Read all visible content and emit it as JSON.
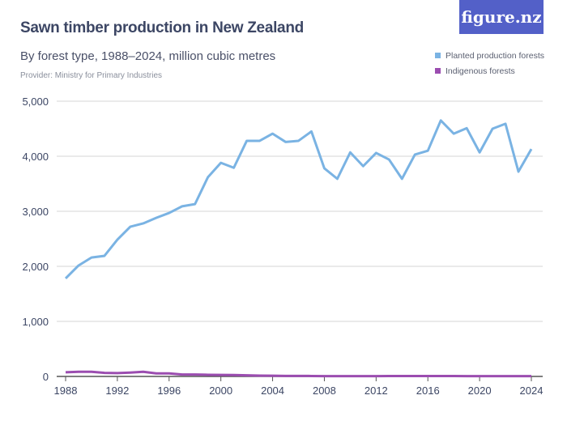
{
  "title": "Sawn timber production in New Zealand",
  "subtitle": "By forest type, 1988–2024, million cubic metres",
  "provider": "Provider: Ministry for Primary Industries",
  "logo": "figure.nz",
  "chart_data": {
    "type": "line",
    "title": "Sawn timber production in New Zealand",
    "x": [
      1988,
      1989,
      1990,
      1991,
      1992,
      1993,
      1994,
      1995,
      1996,
      1997,
      1998,
      1999,
      2000,
      2001,
      2002,
      2003,
      2004,
      2005,
      2006,
      2007,
      2008,
      2009,
      2010,
      2011,
      2012,
      2013,
      2014,
      2015,
      2016,
      2017,
      2018,
      2019,
      2020,
      2021,
      2022,
      2023,
      2024
    ],
    "series": [
      {
        "name": "Planted production forests",
        "color": "#7ab3e3",
        "values": [
          1780,
          2015,
          2160,
          2190,
          2485,
          2720,
          2780,
          2880,
          2970,
          3090,
          3130,
          3620,
          3880,
          3790,
          4280,
          4280,
          4410,
          4260,
          4280,
          4450,
          3780,
          3590,
          4070,
          3820,
          4060,
          3940,
          3590,
          4030,
          4100,
          4650,
          4410,
          4510,
          4070,
          4500,
          4590,
          3720,
          4130
        ]
      },
      {
        "name": "Indigenous forests",
        "color": "#9b4db0",
        "values": [
          75,
          85,
          85,
          65,
          60,
          70,
          85,
          55,
          55,
          35,
          35,
          30,
          28,
          25,
          20,
          15,
          12,
          10,
          10,
          8,
          6,
          5,
          6,
          6,
          6,
          8,
          8,
          8,
          8,
          7,
          7,
          6,
          6,
          5,
          5,
          5,
          5
        ]
      }
    ],
    "ylim": [
      0,
      5000
    ],
    "yticks": [
      "0",
      "1,000",
      "2,000",
      "3,000",
      "4,000",
      "5,000"
    ],
    "xticks": [
      "1988",
      "1992",
      "1996",
      "2000",
      "2004",
      "2008",
      "2012",
      "2016",
      "2020",
      "2024"
    ],
    "grid": true,
    "legend": "top-right"
  }
}
